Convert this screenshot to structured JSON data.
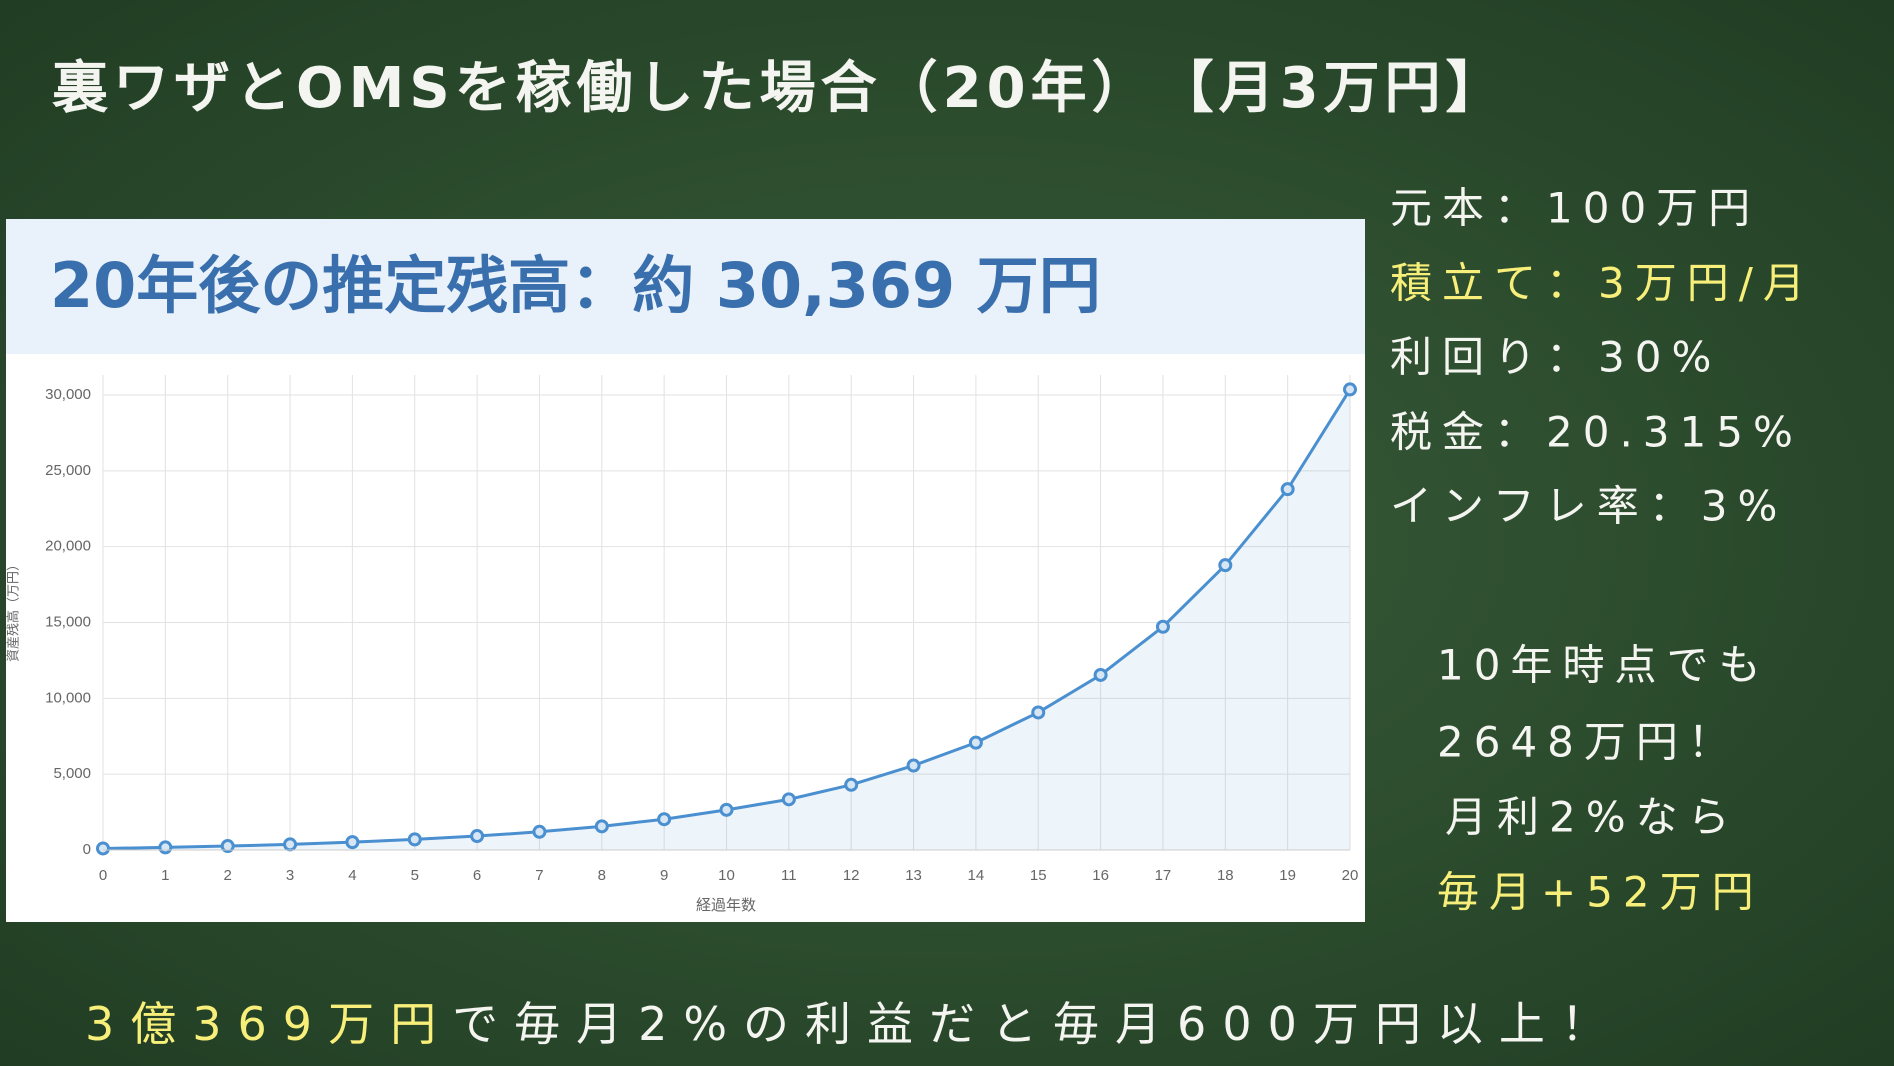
{
  "title": "裏ワザとOMSを稼働した場合（20年）　【月3万円】",
  "conditions": [
    "元本：100万円",
    "積立て：3万円/月",
    "利回り：30%",
    "税金：20.315%",
    "インフレ率：3%"
  ],
  "notes": [
    "10年時点でも",
    "2648万円！",
    "月利2%なら",
    "毎月+52万円"
  ],
  "footer": [
    "3億369万円",
    "で毎月2%の利益だと毎月600万円以上！"
  ],
  "chart_data": {
    "type": "line",
    "title": "20年後の推定残高：約 30,369 万円",
    "x_label": "経過年数",
    "y_label": "資産残高（万円）",
    "x": [
      0,
      1,
      2,
      3,
      4,
      5,
      6,
      7,
      8,
      9,
      10,
      11,
      12,
      13,
      14,
      15,
      16,
      17,
      18,
      19,
      20
    ],
    "series": [
      {
        "name": "資産残高",
        "color": "#4a8fd0",
        "values": [
          100,
          170,
          260,
          370,
          520,
          700,
          920,
          1200,
          1560,
          2030,
          2648,
          3340,
          4300,
          5570,
          7080,
          9070,
          11540,
          14720,
          18780,
          23790,
          30369
        ]
      }
    ],
    "xlim": [
      0,
      20
    ],
    "xticks": [
      0,
      1,
      2,
      3,
      4,
      5,
      6,
      7,
      8,
      9,
      10,
      11,
      12,
      13,
      14,
      15,
      16,
      17,
      18,
      19,
      20
    ],
    "ylim": [
      0,
      30000
    ],
    "yticks": [
      0,
      {
        "value": 5000,
        "label": "5,000"
      },
      {
        "value": 10000,
        "label": "10,000"
      },
      {
        "value": 15000,
        "label": "15,000"
      },
      {
        "value": 20000,
        "label": "20,000"
      },
      {
        "value": 25000,
        "label": "25,000"
      },
      {
        "value": 30000,
        "label": "30,000"
      }
    ],
    "grid": true
  }
}
